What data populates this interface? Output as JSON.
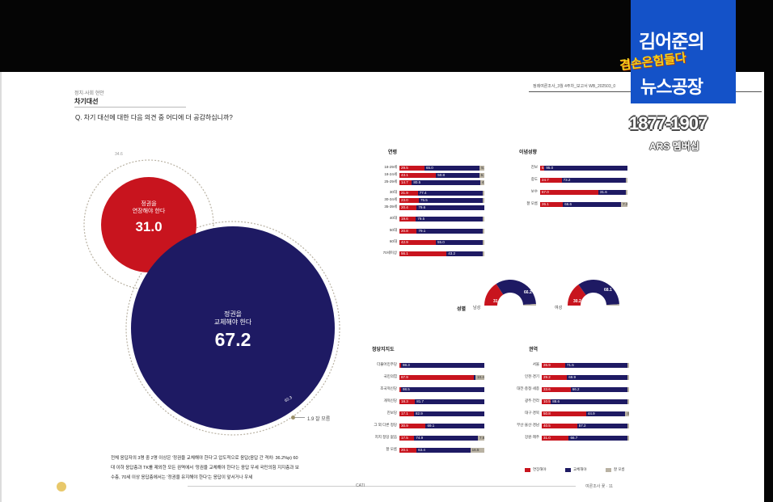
{
  "report": {
    "section_small": "정치·사회 현안",
    "section_title": "차기대선",
    "question": "Q. 차기 대선에 대한 다음 의견 중 어디에 더 공감하십니까?",
    "ref": "정례여론조사_3월 4주차_보고서   WB_202503_0"
  },
  "bubbles": {
    "extend": {
      "label1": "정권을",
      "label2": "연장해야 한다",
      "value": "31.0",
      "outer_value": "34.6"
    },
    "replace": {
      "label1": "정권을",
      "label2": "교체해야 한다",
      "value": "67.2",
      "outer_value": "62.3"
    },
    "unknown": "1.9 잘 모름"
  },
  "groups": {
    "age": {
      "title": "연령",
      "rows": [
        {
          "label": "18-29세",
          "r": 29.5,
          "b": 65.0,
          "g": 5.5
        },
        {
          "label": "18-24세",
          "r": 43.1,
          "b": 50.8,
          "g": 6.1
        },
        {
          "label": "25-29세",
          "r": 14.7,
          "b": 80.5,
          "g": 4.8
        },
        {
          "label": "30대",
          "r": 21.9,
          "b": 77.4,
          "g": 0.7
        },
        {
          "label": "30-34세",
          "r": 23.0,
          "b": 75.5,
          "g": 1.5
        },
        {
          "label": "35-39세",
          "r": 20.4,
          "b": 79.6,
          "g": 0.0
        },
        {
          "label": "40대",
          "r": 19.6,
          "b": 79.5,
          "g": 0.9
        },
        {
          "label": "50대",
          "r": 20.8,
          "b": 79.1,
          "g": 0.1
        },
        {
          "label": "60대",
          "r": 42.9,
          "b": 55.0,
          "g": 2.1
        },
        {
          "label": "70세이상",
          "r": 56.1,
          "b": 43.2,
          "g": 0.7
        }
      ]
    },
    "ideology": {
      "title": "이념성향",
      "rows": [
        {
          "label": "진보",
          "r": 5.0,
          "b": 95.0,
          "g": 0.0
        },
        {
          "label": "중도",
          "r": 24.7,
          "b": 73.2,
          "g": 2.1
        },
        {
          "label": "보수",
          "r": 67.0,
          "b": 31.6,
          "g": 1.4
        },
        {
          "label": "잘 모름",
          "r": 26.1,
          "b": 66.6,
          "g": 7.3
        }
      ]
    },
    "party": {
      "title": "정당지지도",
      "rows": [
        {
          "label": "더불어민주당",
          "r": 1.7,
          "b": 98.3,
          "g": 0.0
        },
        {
          "label": "국민의힘",
          "r": 87.9,
          "b": 1.7,
          "g": 10.4
        },
        {
          "label": "조국혁신당",
          "r": 1.5,
          "b": 98.5,
          "g": 0.0
        },
        {
          "label": "개혁신당",
          "r": 18.3,
          "b": 81.7,
          "g": 0.0
        },
        {
          "label": "진보당",
          "r": 17.1,
          "b": 82.9,
          "g": 0.0
        },
        {
          "label": "그 외 다른 정당",
          "r": 30.9,
          "b": 69.1,
          "g": 0.0
        },
        {
          "label": "지지 정당 없음",
          "r": 17.5,
          "b": 74.9,
          "g": 7.6
        },
        {
          "label": "잘 모름",
          "r": 20.1,
          "b": 63.4,
          "g": 16.5
        }
      ]
    },
    "region": {
      "title": "권역",
      "rows": [
        {
          "label": "서울",
          "r": 26.9,
          "b": 71.5,
          "g": 1.6
        },
        {
          "label": "인천·경기",
          "r": 29.2,
          "b": 69.9,
          "g": 0.9
        },
        {
          "label": "대전·충청·세종",
          "r": 33.6,
          "b": 66.2,
          "g": 0.2
        },
        {
          "label": "광주·전라",
          "r": 10.5,
          "b": 88.6,
          "g": 0.9
        },
        {
          "label": "대구·경북",
          "r": 50.8,
          "b": 44.9,
          "g": 4.3
        },
        {
          "label": "부산·울산·경남",
          "r": 40.5,
          "b": 57.2,
          "g": 2.3
        },
        {
          "label": "강원·제주",
          "r": 31.0,
          "b": 66.7,
          "g": 2.3
        }
      ]
    }
  },
  "gender": {
    "title": "성별",
    "male": {
      "label": "남성",
      "r": 31.8,
      "b": 66.2
    },
    "female": {
      "label": "여성",
      "r": 30.2,
      "b": 68.1
    }
  },
  "legend": {
    "extend": "연장해야",
    "replace": "교체해야",
    "unknown": "잘 모름"
  },
  "colors": {
    "red": "#c8141e",
    "navy": "#1e1a63",
    "gray": "#b9b2a3"
  },
  "summary": "전체 응답자의 3명 중 2명 이상은 '정권을 교체해야 한다'고 압도적으로 응답(응답 간 격차: 36.2%p) 60대 이하 응답층과 TK를 제외한 모든 권역에서 '정권을 교체해야 한다'는 응답 우세 국민의힘 지지층과 보수층, 70세 이상 응답층에서는 '정권을 유지해야 한다'는 응답이 앞서거나 우세",
  "footer": {
    "mid": "CATI",
    "right": "여론조사 꽃 · 11"
  },
  "channel": {
    "line1": "김어준의",
    "accent": "겸손은힘들다",
    "line3": "뉴스공장",
    "phone": "1877-1907",
    "ars": "ARS 멤버십"
  }
}
